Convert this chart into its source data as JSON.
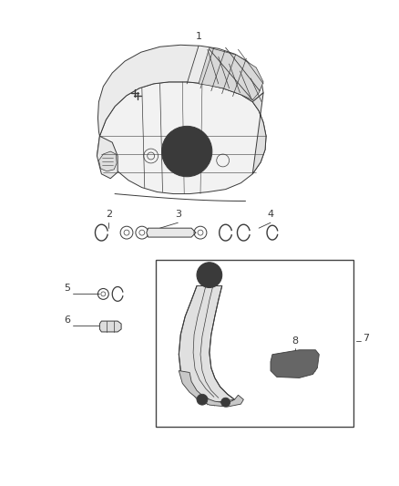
{
  "bg_color": "#ffffff",
  "line_color": "#3a3a3a",
  "fig_width": 4.38,
  "fig_height": 5.33,
  "dpi": 100
}
